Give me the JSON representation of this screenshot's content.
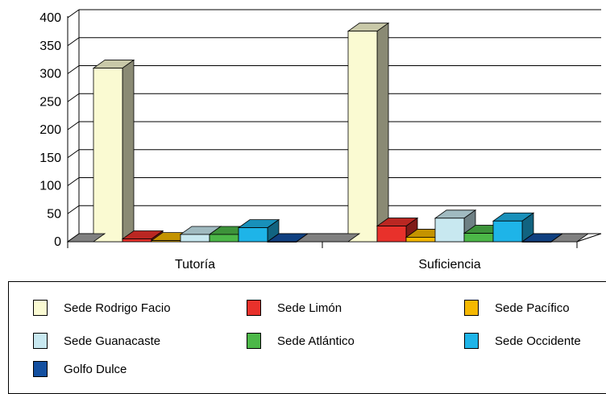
{
  "chart_data": {
    "type": "bar",
    "categories": [
      "Tutoría",
      "Suficiencia"
    ],
    "series": [
      {
        "name": "Sede Rodrigo Facio",
        "color": "#fafad2",
        "values": [
          310,
          376
        ]
      },
      {
        "name": "Sede Limón",
        "color": "#e8312b",
        "values": [
          5,
          28
        ]
      },
      {
        "name": "Sede Pacífico",
        "color": "#f5b800",
        "values": [
          2,
          8
        ]
      },
      {
        "name": "Sede Guanacaste",
        "color": "#c8e8f0",
        "values": [
          13,
          42
        ]
      },
      {
        "name": "Sede Atlántico",
        "color": "#4cb848",
        "values": [
          13,
          15
        ]
      },
      {
        "name": "Sede Occidente",
        "color": "#1eb4e8",
        "values": [
          25,
          37
        ]
      },
      {
        "name": "Golfo Dulce",
        "color": "#1450a0",
        "values": [
          0,
          0
        ]
      }
    ],
    "yticks": [
      0,
      50,
      100,
      150,
      200,
      250,
      300,
      350,
      400
    ],
    "ylim": [
      0,
      400
    ],
    "grid": true,
    "legend": "bottom",
    "title": "",
    "xlabel": "",
    "ylabel": ""
  },
  "legend_title": ""
}
